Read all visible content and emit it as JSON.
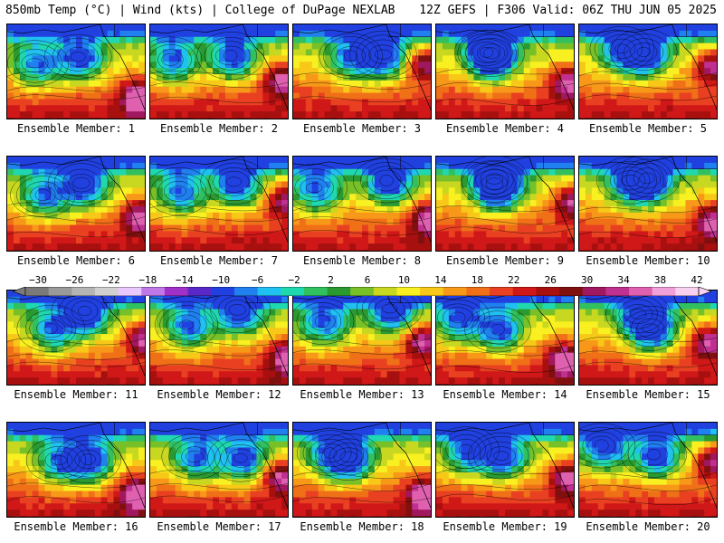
{
  "header": {
    "left_title": "850mb Temp (°C) | Wind (kts) | College of DuPage NEXLAB",
    "right_title": "12Z GEFS | F306 Valid: 06Z THU JUN 05 2025"
  },
  "members": [
    {
      "label": "Ensemble Member: 1"
    },
    {
      "label": "Ensemble Member: 2"
    },
    {
      "label": "Ensemble Member: 3"
    },
    {
      "label": "Ensemble Member: 4"
    },
    {
      "label": "Ensemble Member: 5"
    },
    {
      "label": "Ensemble Member: 6"
    },
    {
      "label": "Ensemble Member: 7"
    },
    {
      "label": "Ensemble Member: 8"
    },
    {
      "label": "Ensemble Member: 9"
    },
    {
      "label": "Ensemble Member: 10"
    },
    {
      "label": "Ensemble Member: 11"
    },
    {
      "label": "Ensemble Member: 12"
    },
    {
      "label": "Ensemble Member: 13"
    },
    {
      "label": "Ensemble Member: 14"
    },
    {
      "label": "Ensemble Member: 15"
    },
    {
      "label": "Ensemble Member: 16"
    },
    {
      "label": "Ensemble Member: 17"
    },
    {
      "label": "Ensemble Member: 18"
    },
    {
      "label": "Ensemble Member: 19"
    },
    {
      "label": "Ensemble Member: 20"
    }
  ],
  "colorbar": {
    "labels": [
      "−30",
      "−26",
      "−22",
      "−18",
      "−14",
      "−10",
      "−6",
      "−2",
      "2",
      "6",
      "10",
      "14",
      "18",
      "22",
      "26",
      "30",
      "34",
      "38",
      "42"
    ],
    "colors": [
      "#7a7a7a",
      "#9a9a9a",
      "#b4b4b4",
      "#d0d0d0",
      "#e8c8ff",
      "#c078e8",
      "#a030c8",
      "#5a28c8",
      "#2040e0",
      "#2080f0",
      "#20c0f0",
      "#20d8b0",
      "#30c060",
      "#2a9a30",
      "#78c028",
      "#c8d820",
      "#f8f020",
      "#f8c818",
      "#f89818",
      "#f07018",
      "#e84020",
      "#d01818",
      "#a81010",
      "#801010",
      "#a01860",
      "#c03090",
      "#e060b0",
      "#f0a0d8",
      "#f8d0f0"
    ]
  }
}
